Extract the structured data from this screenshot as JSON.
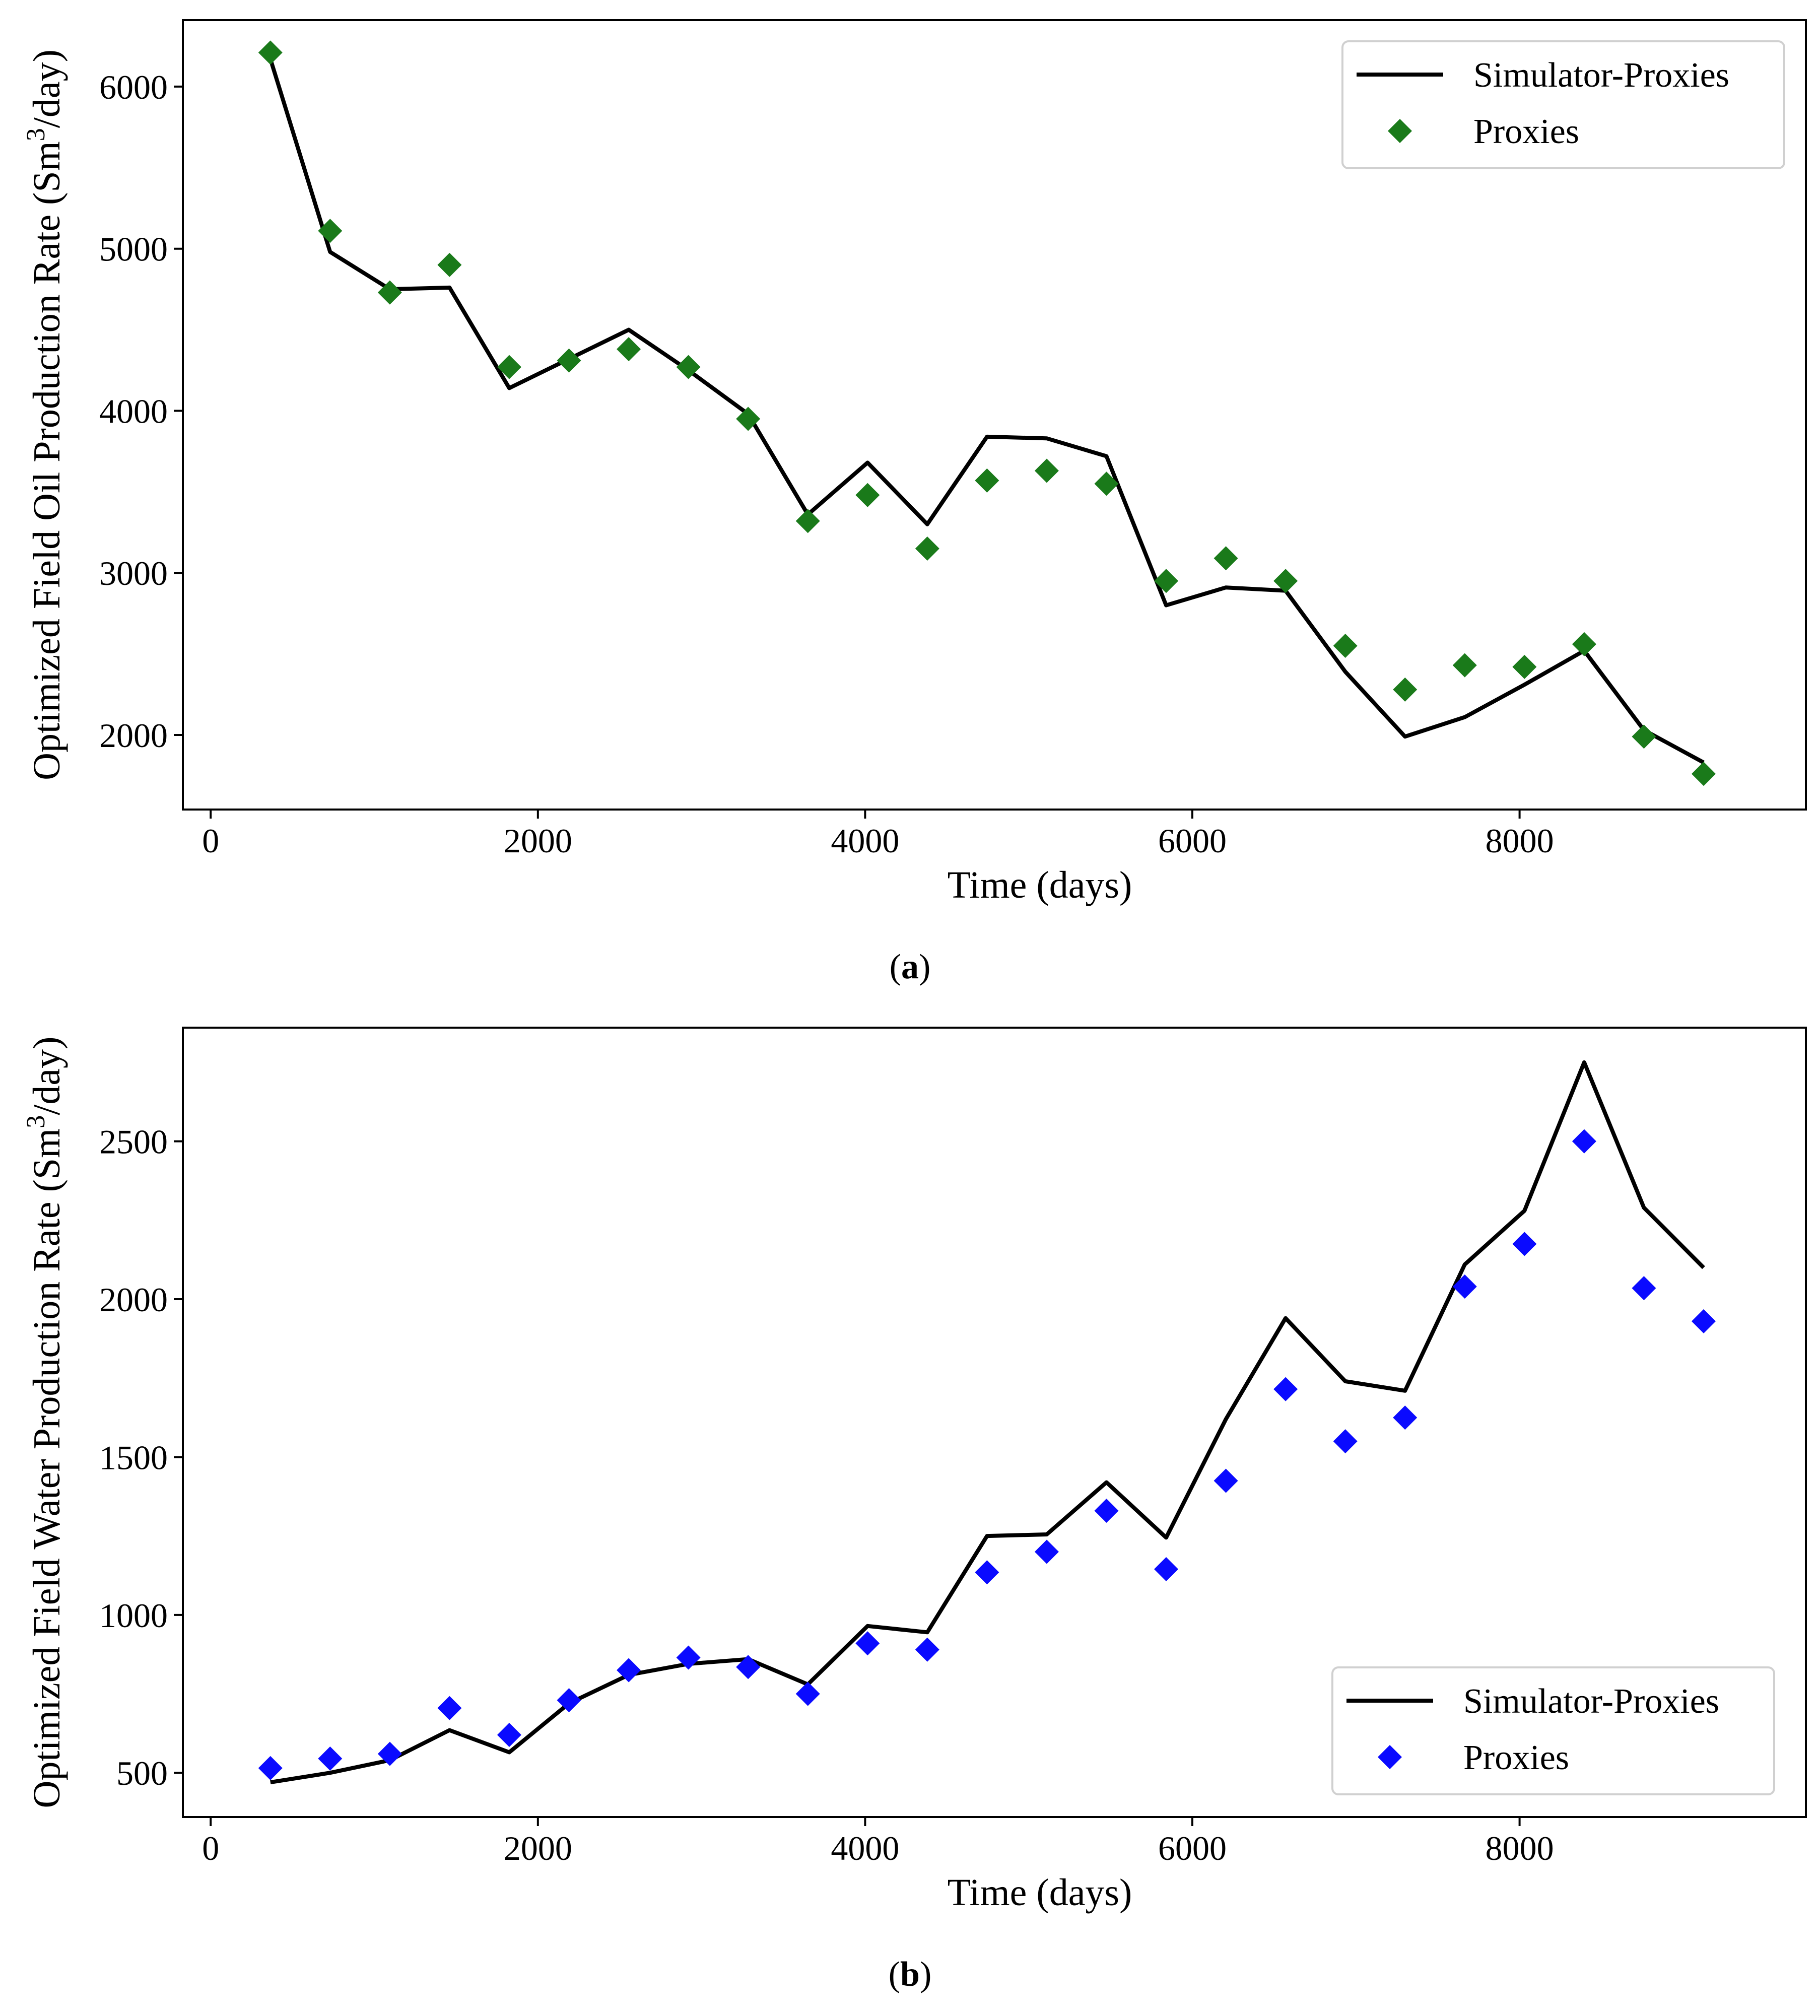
{
  "figure": {
    "caption_a": "a",
    "caption_b": "b"
  },
  "colors": {
    "line": "#000000",
    "proxies_a": "#1a7a1a",
    "proxies_b": "#0a0aff"
  },
  "chart_data": [
    {
      "type": "line",
      "panel": "a",
      "title": "",
      "xlabel": "Time (days)",
      "ylabel": "Optimized Field Oil Production Rate (Sm³/day)",
      "ylabel_main": "Optimized Field Oil Production Rate (Sm",
      "ylabel_sup": "3",
      "ylabel_end": "/day)",
      "xlim": [
        -170,
        9750
      ],
      "ylim": [
        1540,
        6410
      ],
      "xticks": [
        0,
        2000,
        4000,
        6000,
        8000
      ],
      "yticks": [
        2000,
        3000,
        4000,
        5000,
        6000
      ],
      "grid": false,
      "legend_position": "upper right",
      "series": [
        {
          "name": "Simulator-Proxies",
          "kind": "line",
          "x": [
            365,
            730,
            1095,
            1460,
            1825,
            2190,
            2555,
            2920,
            3285,
            3650,
            4015,
            4380,
            4745,
            5110,
            5475,
            5840,
            6205,
            6570,
            6935,
            7300,
            7665,
            8030,
            8395,
            8760,
            9125
          ],
          "y": [
            6170,
            4980,
            4750,
            4760,
            4140,
            4320,
            4500,
            4250,
            3980,
            3360,
            3680,
            3300,
            3840,
            3830,
            3720,
            2800,
            2910,
            2890,
            2390,
            1990,
            2110,
            2310,
            2520,
            2030,
            1830
          ]
        },
        {
          "name": "Proxies",
          "kind": "marker",
          "x": [
            365,
            730,
            1095,
            1460,
            1825,
            2190,
            2555,
            2920,
            3285,
            3650,
            4015,
            4380,
            4745,
            5110,
            5475,
            5840,
            6205,
            6570,
            6935,
            7300,
            7665,
            8030,
            8395,
            8760,
            9125
          ],
          "y": [
            6210,
            5110,
            4730,
            4900,
            4270,
            4310,
            4380,
            4270,
            3950,
            3320,
            3480,
            3150,
            3570,
            3630,
            3550,
            2950,
            3090,
            2950,
            2550,
            2280,
            2430,
            2420,
            2560,
            1990,
            1760
          ]
        }
      ]
    },
    {
      "type": "line",
      "panel": "b",
      "title": "",
      "xlabel": "Time (days)",
      "ylabel": "Optimized Field Water Production Rate (Sm³/day)",
      "ylabel_main": "Optimized Field Water Production Rate (Sm",
      "ylabel_sup": "3",
      "ylabel_end": "/day)",
      "xlim": [
        -170,
        9750
      ],
      "ylim": [
        360,
        2860
      ],
      "xticks": [
        0,
        2000,
        4000,
        6000,
        8000
      ],
      "yticks": [
        500,
        1000,
        1500,
        2000,
        2500
      ],
      "grid": false,
      "legend_position": "lower right",
      "series": [
        {
          "name": "Simulator-Proxies",
          "kind": "line",
          "x": [
            365,
            730,
            1095,
            1460,
            1825,
            2190,
            2555,
            2920,
            3285,
            3650,
            4015,
            4380,
            4745,
            5110,
            5475,
            5840,
            6205,
            6570,
            6935,
            7300,
            7665,
            8030,
            8395,
            8760,
            9125
          ],
          "y": [
            470,
            500,
            540,
            635,
            565,
            720,
            810,
            845,
            860,
            780,
            965,
            945,
            1250,
            1255,
            1420,
            1245,
            1620,
            1940,
            1740,
            1710,
            2110,
            2280,
            2750,
            2290,
            2100
          ]
        },
        {
          "name": "Proxies",
          "kind": "marker",
          "x": [
            365,
            730,
            1095,
            1460,
            1825,
            2190,
            2555,
            2920,
            3285,
            3650,
            4015,
            4380,
            4745,
            5110,
            5475,
            5840,
            6205,
            6570,
            6935,
            7300,
            7665,
            8030,
            8395,
            8760,
            9125
          ],
          "y": [
            515,
            545,
            560,
            705,
            620,
            730,
            825,
            865,
            835,
            750,
            910,
            890,
            1135,
            1200,
            1330,
            1145,
            1425,
            1715,
            1550,
            1625,
            2040,
            2175,
            2500,
            2035,
            1930
          ]
        }
      ]
    }
  ]
}
